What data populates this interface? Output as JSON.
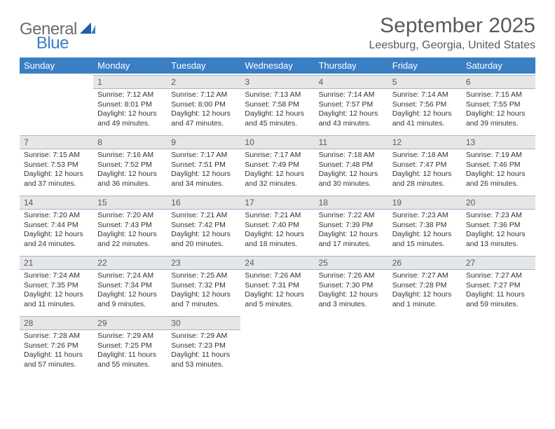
{
  "logo": {
    "general": "General",
    "blue": "Blue"
  },
  "title": "September 2025",
  "location": "Leesburg, Georgia, United States",
  "header_bg": "#3a7fc4",
  "header_fg": "#ffffff",
  "daynum_bg": "#e6e6e6",
  "accent_border": "#9fb8d4",
  "columns": [
    "Sunday",
    "Monday",
    "Tuesday",
    "Wednesday",
    "Thursday",
    "Friday",
    "Saturday"
  ],
  "weeks": [
    [
      null,
      {
        "n": "1",
        "sr": "7:12 AM",
        "ss": "8:01 PM",
        "dl": "12 hours and 49 minutes."
      },
      {
        "n": "2",
        "sr": "7:12 AM",
        "ss": "8:00 PM",
        "dl": "12 hours and 47 minutes."
      },
      {
        "n": "3",
        "sr": "7:13 AM",
        "ss": "7:58 PM",
        "dl": "12 hours and 45 minutes."
      },
      {
        "n": "4",
        "sr": "7:14 AM",
        "ss": "7:57 PM",
        "dl": "12 hours and 43 minutes."
      },
      {
        "n": "5",
        "sr": "7:14 AM",
        "ss": "7:56 PM",
        "dl": "12 hours and 41 minutes."
      },
      {
        "n": "6",
        "sr": "7:15 AM",
        "ss": "7:55 PM",
        "dl": "12 hours and 39 minutes."
      }
    ],
    [
      {
        "n": "7",
        "sr": "7:15 AM",
        "ss": "7:53 PM",
        "dl": "12 hours and 37 minutes."
      },
      {
        "n": "8",
        "sr": "7:16 AM",
        "ss": "7:52 PM",
        "dl": "12 hours and 36 minutes."
      },
      {
        "n": "9",
        "sr": "7:17 AM",
        "ss": "7:51 PM",
        "dl": "12 hours and 34 minutes."
      },
      {
        "n": "10",
        "sr": "7:17 AM",
        "ss": "7:49 PM",
        "dl": "12 hours and 32 minutes."
      },
      {
        "n": "11",
        "sr": "7:18 AM",
        "ss": "7:48 PM",
        "dl": "12 hours and 30 minutes."
      },
      {
        "n": "12",
        "sr": "7:18 AM",
        "ss": "7:47 PM",
        "dl": "12 hours and 28 minutes."
      },
      {
        "n": "13",
        "sr": "7:19 AM",
        "ss": "7:46 PM",
        "dl": "12 hours and 26 minutes."
      }
    ],
    [
      {
        "n": "14",
        "sr": "7:20 AM",
        "ss": "7:44 PM",
        "dl": "12 hours and 24 minutes."
      },
      {
        "n": "15",
        "sr": "7:20 AM",
        "ss": "7:43 PM",
        "dl": "12 hours and 22 minutes."
      },
      {
        "n": "16",
        "sr": "7:21 AM",
        "ss": "7:42 PM",
        "dl": "12 hours and 20 minutes."
      },
      {
        "n": "17",
        "sr": "7:21 AM",
        "ss": "7:40 PM",
        "dl": "12 hours and 18 minutes."
      },
      {
        "n": "18",
        "sr": "7:22 AM",
        "ss": "7:39 PM",
        "dl": "12 hours and 17 minutes."
      },
      {
        "n": "19",
        "sr": "7:23 AM",
        "ss": "7:38 PM",
        "dl": "12 hours and 15 minutes."
      },
      {
        "n": "20",
        "sr": "7:23 AM",
        "ss": "7:36 PM",
        "dl": "12 hours and 13 minutes."
      }
    ],
    [
      {
        "n": "21",
        "sr": "7:24 AM",
        "ss": "7:35 PM",
        "dl": "12 hours and 11 minutes."
      },
      {
        "n": "22",
        "sr": "7:24 AM",
        "ss": "7:34 PM",
        "dl": "12 hours and 9 minutes."
      },
      {
        "n": "23",
        "sr": "7:25 AM",
        "ss": "7:32 PM",
        "dl": "12 hours and 7 minutes."
      },
      {
        "n": "24",
        "sr": "7:26 AM",
        "ss": "7:31 PM",
        "dl": "12 hours and 5 minutes."
      },
      {
        "n": "25",
        "sr": "7:26 AM",
        "ss": "7:30 PM",
        "dl": "12 hours and 3 minutes."
      },
      {
        "n": "26",
        "sr": "7:27 AM",
        "ss": "7:28 PM",
        "dl": "12 hours and 1 minute."
      },
      {
        "n": "27",
        "sr": "7:27 AM",
        "ss": "7:27 PM",
        "dl": "11 hours and 59 minutes."
      }
    ],
    [
      {
        "n": "28",
        "sr": "7:28 AM",
        "ss": "7:26 PM",
        "dl": "11 hours and 57 minutes."
      },
      {
        "n": "29",
        "sr": "7:29 AM",
        "ss": "7:25 PM",
        "dl": "11 hours and 55 minutes."
      },
      {
        "n": "30",
        "sr": "7:29 AM",
        "ss": "7:23 PM",
        "dl": "11 hours and 53 minutes."
      },
      null,
      null,
      null,
      null
    ]
  ],
  "labels": {
    "sunrise": "Sunrise:",
    "sunset": "Sunset:",
    "daylight": "Daylight:"
  }
}
